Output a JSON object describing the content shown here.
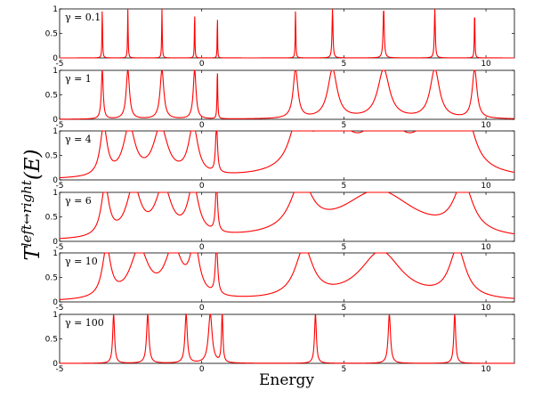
{
  "chart_data": {
    "type": "line",
    "xlabel": "Energy",
    "ylabel_main": "T",
    "ylabel_sup": "left↔right",
    "ylabel_arg": "(E)",
    "xlim": [
      -5,
      11
    ],
    "ylim": [
      0,
      1
    ],
    "x_ticks": [
      -5,
      0,
      5,
      10
    ],
    "x_tick_labels": [
      "-5",
      "0",
      "5",
      "10"
    ],
    "y_ticks": [
      0,
      0.5,
      1
    ],
    "y_tick_labels": [
      "0",
      "0.5",
      "1"
    ],
    "line_color": "#ff0000",
    "grid": false,
    "panels": [
      {
        "label": "γ = 0.1",
        "peaks": [
          {
            "x": -3.5,
            "w": 0.012
          },
          {
            "x": -2.6,
            "w": 0.012
          },
          {
            "x": -1.4,
            "w": 0.012
          },
          {
            "x": -0.25,
            "w": 0.01
          },
          {
            "x": 0.55,
            "w": 0.008
          },
          {
            "x": 3.3,
            "w": 0.012
          },
          {
            "x": 4.6,
            "w": 0.02
          },
          {
            "x": 6.4,
            "w": 0.025
          },
          {
            "x": 8.2,
            "w": 0.02
          },
          {
            "x": 9.6,
            "w": 0.012
          }
        ]
      },
      {
        "label": "γ = 1",
        "peaks": [
          {
            "x": -3.5,
            "w": 0.04
          },
          {
            "x": -2.6,
            "w": 0.07
          },
          {
            "x": -1.4,
            "w": 0.08
          },
          {
            "x": -0.25,
            "w": 0.06
          },
          {
            "x": 0.55,
            "w": 0.015
          },
          {
            "x": 3.3,
            "w": 0.1
          },
          {
            "x": 4.6,
            "w": 0.2
          },
          {
            "x": 6.4,
            "w": 0.25
          },
          {
            "x": 8.2,
            "w": 0.2
          },
          {
            "x": 9.6,
            "w": 0.1
          }
        ]
      },
      {
        "label": "γ = 4",
        "peaks": [
          {
            "x": -3.45,
            "w": 0.15
          },
          {
            "x": -2.55,
            "w": 0.25
          },
          {
            "x": -1.45,
            "w": 0.3
          },
          {
            "x": -0.3,
            "w": 0.2
          },
          {
            "x": 0.52,
            "w": 0.04
          },
          {
            "x": 3.4,
            "w": 0.35
          },
          {
            "x": 4.6,
            "w": 0.75
          },
          {
            "x": 6.4,
            "w": 0.8
          },
          {
            "x": 8.2,
            "w": 0.75
          },
          {
            "x": 9.3,
            "w": 0.35
          }
        ]
      },
      {
        "label": "γ = 6",
        "peaks": [
          {
            "x": -3.4,
            "w": 0.17
          },
          {
            "x": -2.4,
            "w": 0.3
          },
          {
            "x": -1.35,
            "w": 0.33
          },
          {
            "x": -0.3,
            "w": 0.23
          },
          {
            "x": 0.52,
            "w": 0.045
          },
          {
            "x": 3.5,
            "w": 0.45
          },
          {
            "x": 6.2,
            "w": 1.6
          },
          {
            "x": 9.2,
            "w": 0.4
          }
        ]
      },
      {
        "label": "γ = 10",
        "peaks": [
          {
            "x": -3.35,
            "w": 0.18
          },
          {
            "x": -2.2,
            "w": 0.38
          },
          {
            "x": -1.0,
            "w": 0.35
          },
          {
            "x": -0.25,
            "w": 0.2
          },
          {
            "x": 0.52,
            "w": 0.05
          },
          {
            "x": 3.6,
            "w": 0.38
          },
          {
            "x": 6.3,
            "w": 0.9
          },
          {
            "x": 9.0,
            "w": 0.35
          }
        ]
      },
      {
        "label": "γ = 100",
        "peaks": [
          {
            "x": -3.1,
            "w": 0.04
          },
          {
            "x": -1.9,
            "w": 0.05
          },
          {
            "x": -0.55,
            "w": 0.05
          },
          {
            "x": 0.3,
            "w": 0.08
          },
          {
            "x": 0.72,
            "w": 0.03
          },
          {
            "x": 4.0,
            "w": 0.04
          },
          {
            "x": 6.6,
            "w": 0.05
          },
          {
            "x": 8.9,
            "w": 0.04
          }
        ]
      }
    ]
  }
}
